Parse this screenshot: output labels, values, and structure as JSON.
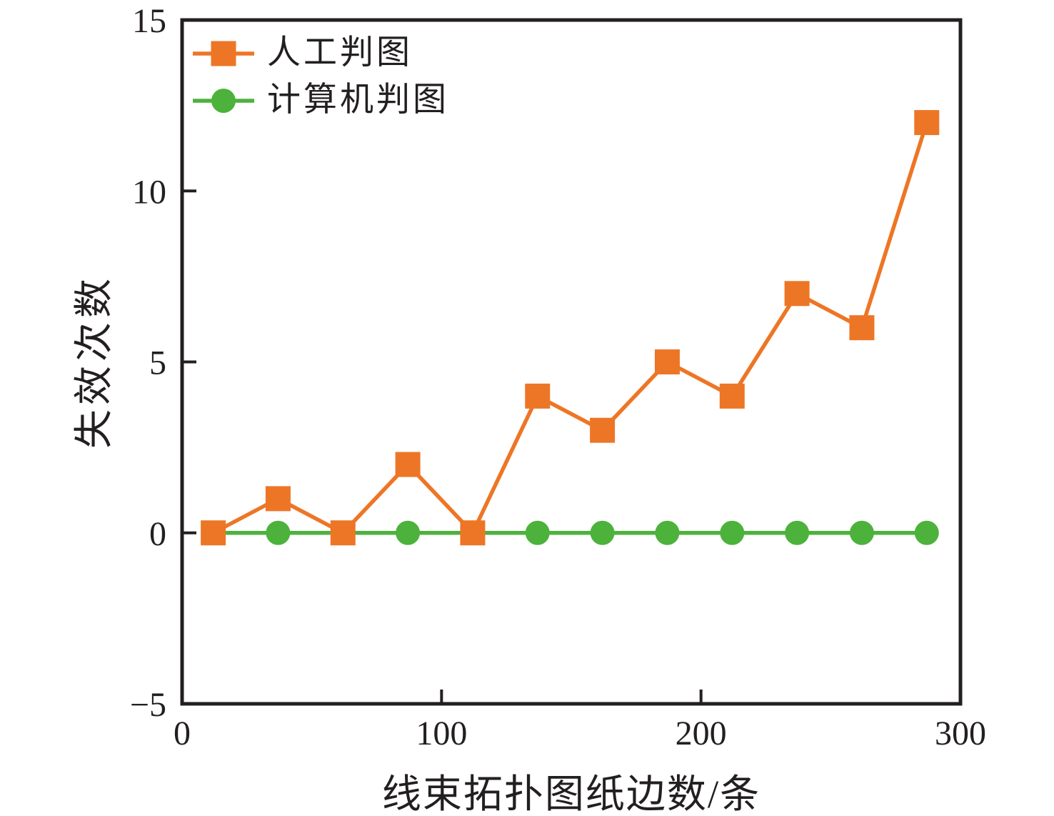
{
  "chart_data": {
    "type": "line",
    "title": "",
    "xlabel": "线束拓扑图纸边数/条",
    "ylabel": "失效次数",
    "xlim": [
      0,
      300
    ],
    "ylim": [
      -5,
      15
    ],
    "x_ticks": [
      0,
      100,
      200,
      300
    ],
    "y_ticks": [
      -5,
      0,
      5,
      10,
      15
    ],
    "grid": false,
    "legend_position": "top-left-inside",
    "frame_color": "#231f20",
    "text_color": "#231f20",
    "background": "#ffffff",
    "x": [
      12,
      37,
      62,
      87,
      112,
      137,
      162,
      187,
      212,
      237,
      262,
      287
    ],
    "series": [
      {
        "key": "manual",
        "name": "人工判图",
        "marker": "square",
        "color": "#ED7626",
        "values": [
          0,
          1,
          0,
          2,
          0,
          4,
          3,
          5,
          4,
          7,
          6,
          12
        ]
      },
      {
        "key": "computer",
        "name": "计算机判图",
        "marker": "circle",
        "color": "#4CB23C",
        "values": [
          0,
          0,
          0,
          0,
          0,
          0,
          0,
          0,
          0,
          0,
          0,
          0
        ]
      }
    ]
  }
}
